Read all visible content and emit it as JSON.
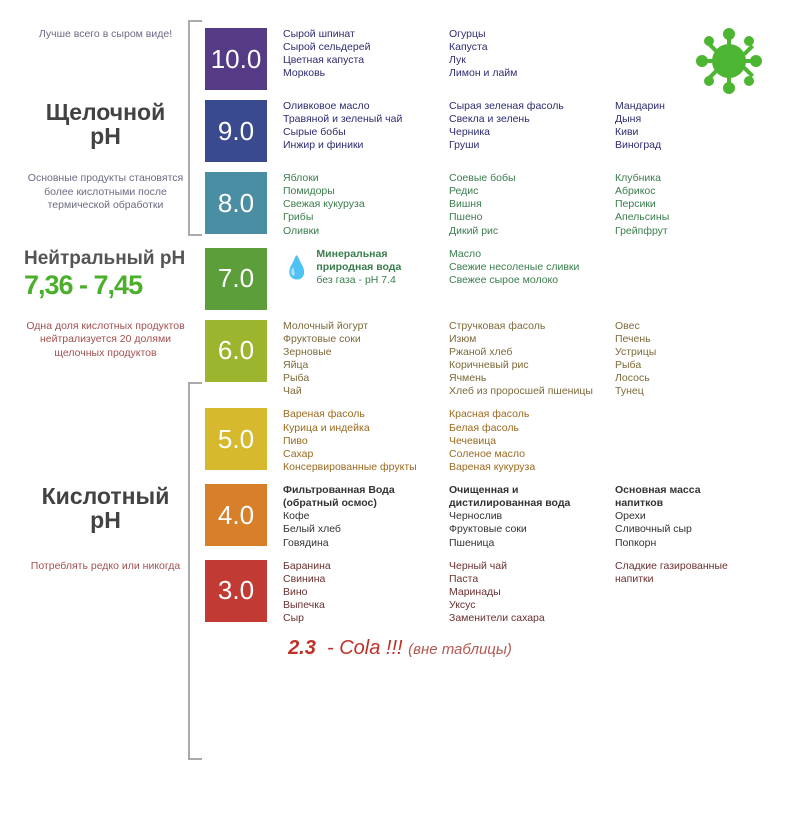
{
  "virus_color": "#4cb531",
  "footer": {
    "val": "2.3",
    "text": "- Cola !!!",
    "sub": "(вне таблицы)"
  },
  "sections": {
    "alkaline": {
      "title1": "Щелочной",
      "title2": "pH"
    },
    "neutral": {
      "title": "Нейтральный pH",
      "value": "7,36 - 7,45"
    },
    "acidic": {
      "title1": "Кислотный",
      "title2": "pH"
    }
  },
  "rows": [
    {
      "note": "Лучше всего в сыром виде!",
      "note_style": "note-blue",
      "ph": "10.0",
      "color": "#553b85",
      "text_color": "#2d2d70",
      "cols": [
        [
          "Сырой шпинат",
          "Сырой сельдерей",
          "Цветная капуста",
          "Морковь"
        ],
        [
          "Огурцы",
          "Капуста",
          "Лук",
          "Лимон и лайм"
        ],
        []
      ]
    },
    {
      "note": "",
      "section": "alkaline",
      "ph": "9.0",
      "color": "#3a4a8f",
      "text_color": "#2d2d70",
      "cols": [
        [
          "Оливковое масло",
          "Травяной и зеленый чай",
          "Сырые бобы",
          "Инжир и финики"
        ],
        [
          "Сырая зеленая фасоль",
          "Свекла и зелень",
          "Черника",
          "Груши"
        ],
        [
          "Мандарин",
          "Дыня",
          "Киви",
          "Виноград"
        ]
      ]
    },
    {
      "note": "Основные продукты становятся более кислотными после термической обработки",
      "note_style": "note-blue",
      "ph": "8.0",
      "color": "#4a8ea3",
      "text_color": "#3a7d4c",
      "cols": [
        [
          "Яблоки",
          "Помидоры",
          "Свежая кукуруза",
          "Грибы",
          "Оливки"
        ],
        [
          "Соевые бобы",
          "Редис",
          "Вишня",
          "Пшено",
          "Дикий рис"
        ],
        [
          "Клубника",
          "Абрикос",
          "Персики",
          "Апельсины",
          "Грейпфрут"
        ]
      ]
    },
    {
      "note": "",
      "section": "neutral",
      "ph": "7.0",
      "color": "#5c9e3a",
      "text_color": "#3a7d4c",
      "water": {
        "label1": "Минеральная",
        "label2": "природная вода",
        "label3": "без газа - pH 7.4",
        "icon_color": "#2c88c9"
      },
      "cols": [
        [],
        [
          "Масло",
          "Свежие несоленые сливки",
          "Свежее сырое молоко"
        ],
        []
      ]
    },
    {
      "note": "Одна доля кислотных продуктов нейтрализуется 20 долями щелочных продуктов",
      "note_style": "note-red",
      "ph": "6.0",
      "color": "#9bb52e",
      "text_color": "#7d6a3a",
      "cols": [
        [
          "Молочный йогурт",
          "Фруктовые соки",
          "Зерновые",
          "Яйца",
          "Рыба",
          "Чай"
        ],
        [
          "Стручковая фасоль",
          "Изюм",
          "Ржаной хлеб",
          "Коричневый рис",
          "Ячмень",
          "Хлеб из проросшей пшеницы"
        ],
        [
          "Овес",
          "Печень",
          "Устрицы",
          "Рыба",
          "Лосось",
          "Тунец"
        ]
      ]
    },
    {
      "note": "",
      "ph": "5.0",
      "color": "#d7b92e",
      "text_color": "#9a6a1f",
      "cols": [
        [
          "Вареная фасоль",
          "Курица и индейка",
          "Пиво",
          "Сахар",
          "Консервированные фрукты"
        ],
        [
          "Красная фасоль",
          "Белая фасоль",
          "Чечевица",
          "Соленое масло",
          "Вареная кукуруза"
        ],
        []
      ]
    },
    {
      "note": "",
      "section": "acidic",
      "ph": "4.0",
      "color": "#d87f2a",
      "text_color": "#333333",
      "cols": [
        [
          "*Фильтрованная Вода",
          "*(обратный осмос)",
          "Кофе",
          "Белый хлеб",
          "Говядина"
        ],
        [
          "*Очищенная и",
          "*дистилированная вода",
          "Чернослив",
          "Фруктовые соки",
          "Пшеница"
        ],
        [
          "*Основная масса",
          "*напитков",
          "Орехи",
          "Сливочный сыр",
          "Попкорн"
        ]
      ]
    },
    {
      "note": "Потреблять редко или никогда",
      "note_style": "note-red",
      "ph": "3.0",
      "color": "#c13a33",
      "text_color": "#6a3030",
      "cols": [
        [
          "Баранина",
          "Свинина",
          "Вино",
          "Выпечка",
          "Сыр"
        ],
        [
          "Черный чай",
          "Паста",
          "Маринады",
          "Уксус",
          "Заменители сахара"
        ],
        [
          "Сладкие газированные",
          "напитки"
        ]
      ]
    }
  ]
}
